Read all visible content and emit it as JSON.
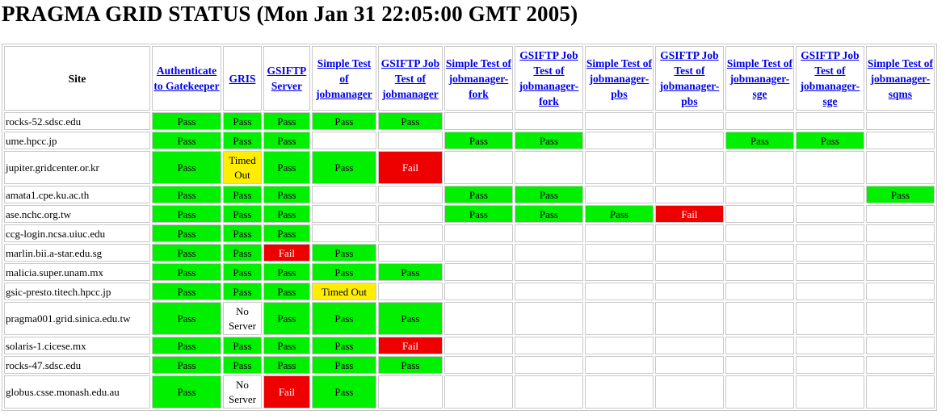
{
  "title": "PRAGMA GRID STATUS (Mon Jan 31 22:05:00 GMT 2005)",
  "headers": [
    "Site",
    "Authenticate to Gatekeeper",
    "GRIS",
    "GSIFTP Server",
    "Simple Test of jobmanager",
    "GSIFTP Job Test of jobmanager",
    "Simple Test of jobmanager-fork",
    "GSIFTP Job Test of jobmanager-fork",
    "Simple Test of jobmanager-pbs",
    "GSIFTP Job Test of jobmanager-pbs",
    "Simple Test of jobmanager-sge",
    "GSIFTP Job Test of jobmanager-sge",
    "Simple Test of jobmanager-sqms"
  ],
  "status_colors": {
    "Pass": "#00f000",
    "Fail": "#ee0000",
    "Timed Out": "#ffee00"
  },
  "rows": [
    {
      "site": "rocks-52.sdsc.edu",
      "cells": [
        "Pass",
        "Pass",
        "Pass",
        "Pass",
        "Pass",
        "",
        "",
        "",
        "",
        "",
        "",
        ""
      ]
    },
    {
      "site": "ume.hpcc.jp",
      "cells": [
        "Pass",
        "Pass",
        "Pass",
        "",
        "",
        "Pass",
        "Pass",
        "",
        "",
        "Pass",
        "Pass",
        ""
      ]
    },
    {
      "site": "jupiter.gridcenter.or.kr",
      "cells": [
        "Pass",
        "Timed Out",
        "Pass",
        "Pass",
        "Fail",
        "",
        "",
        "",
        "",
        "",
        "",
        ""
      ]
    },
    {
      "site": "amata1.cpe.ku.ac.th",
      "cells": [
        "Pass",
        "Pass",
        "Pass",
        "",
        "",
        "Pass",
        "Pass",
        "",
        "",
        "",
        "",
        "Pass"
      ]
    },
    {
      "site": "ase.nchc.org.tw",
      "cells": [
        "Pass",
        "Pass",
        "Pass",
        "",
        "",
        "Pass",
        "Pass",
        "Pass",
        "Fail",
        "",
        "",
        ""
      ]
    },
    {
      "site": "ccg-login.ncsa.uiuc.edu",
      "cells": [
        "Pass",
        "Pass",
        "Pass",
        "",
        "",
        "",
        "",
        "",
        "",
        "",
        "",
        ""
      ]
    },
    {
      "site": "marlin.bii.a-star.edu.sg",
      "cells": [
        "Pass",
        "Pass",
        "Fail",
        "Pass",
        "",
        "",
        "",
        "",
        "",
        "",
        "",
        ""
      ]
    },
    {
      "site": "malicia.super.unam.mx",
      "cells": [
        "Pass",
        "Pass",
        "Pass",
        "Pass",
        "Pass",
        "",
        "",
        "",
        "",
        "",
        "",
        ""
      ]
    },
    {
      "site": "gsic-presto.titech.hpcc.jp",
      "cells": [
        "Pass",
        "Pass",
        "Pass",
        "Timed Out",
        "",
        "",
        "",
        "",
        "",
        "",
        "",
        ""
      ]
    },
    {
      "site": "pragma001.grid.sinica.edu.tw",
      "cells": [
        "Pass",
        "No Server",
        "Pass",
        "Pass",
        "Pass",
        "",
        "",
        "",
        "",
        "",
        "",
        ""
      ]
    },
    {
      "site": "solaris-1.cicese.mx",
      "cells": [
        "Pass",
        "Pass",
        "Pass",
        "Pass",
        "Fail",
        "",
        "",
        "",
        "",
        "",
        "",
        ""
      ]
    },
    {
      "site": "rocks-47.sdsc.edu",
      "cells": [
        "Pass",
        "Pass",
        "Pass",
        "Pass",
        "Pass",
        "",
        "",
        "",
        "",
        "",
        "",
        ""
      ]
    },
    {
      "site": "globus.csse.monash.edu.au",
      "cells": [
        "Pass",
        "No Server",
        "Fail",
        "Pass",
        "",
        "",
        "",
        "",
        "",
        "",
        "",
        ""
      ]
    }
  ]
}
